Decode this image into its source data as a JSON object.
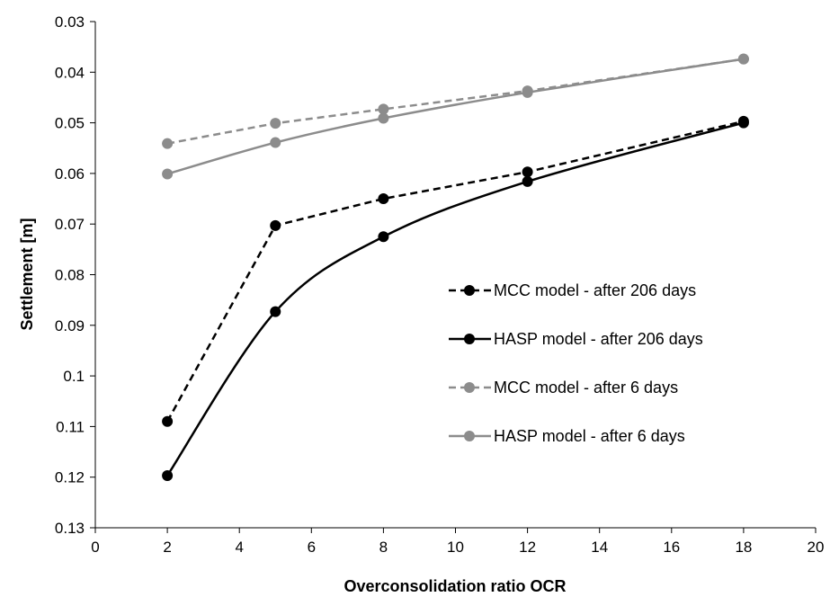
{
  "chart_data": {
    "type": "line",
    "xlabel": "Overconsolidation ratio  OCR",
    "ylabel": "Settlement [m]",
    "xlim": [
      0,
      20
    ],
    "ylim": [
      0.03,
      0.13
    ],
    "y_inverted": true,
    "xticks": [
      0,
      2,
      4,
      6,
      8,
      10,
      12,
      14,
      16,
      18,
      20
    ],
    "yticks": [
      0.03,
      0.04,
      0.05,
      0.06,
      0.07,
      0.08,
      0.09,
      0.1,
      0.11,
      0.12,
      0.13
    ],
    "xtick_labels": [
      "0",
      "2",
      "4",
      "6",
      "8",
      "10",
      "12",
      "14",
      "16",
      "18",
      "20"
    ],
    "ytick_labels": [
      "0.03",
      "0.04",
      "0.05",
      "0.06",
      "0.07",
      "0.08",
      "0.09",
      "0.1",
      "0.11",
      "0.12",
      "0.13"
    ],
    "grid": false,
    "legend_position": "right-center",
    "x": [
      2,
      5,
      8,
      12,
      18
    ],
    "series": [
      {
        "name": "MCC model - after 206 days",
        "values": [
          0.109,
          0.0703,
          0.065,
          0.0597,
          0.0497
        ],
        "color": "#000000",
        "dashed": true,
        "smooth": false
      },
      {
        "name": "HASP model - after 206 days",
        "values": [
          0.1197,
          0.0873,
          0.0725,
          0.0616,
          0.05
        ],
        "color": "#000000",
        "dashed": false,
        "smooth": true
      },
      {
        "name": "MCC model - after 6 days",
        "values": [
          0.0541,
          0.0501,
          0.0473,
          0.0437,
          0.0374
        ],
        "color": "#8c8c8c",
        "dashed": true,
        "smooth": false
      },
      {
        "name": "HASP model - after 6 days",
        "values": [
          0.0601,
          0.0539,
          0.0491,
          0.044,
          0.0374
        ],
        "color": "#8c8c8c",
        "dashed": false,
        "smooth": true
      }
    ]
  }
}
